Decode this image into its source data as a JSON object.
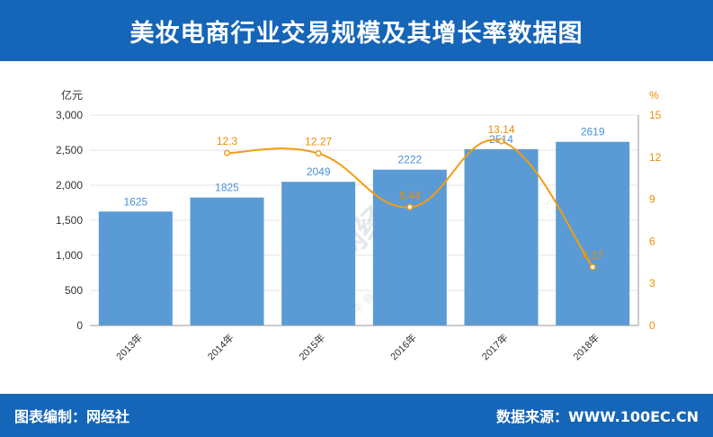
{
  "header": {
    "title": "美妆电商行业交易规模及其增长率数据图"
  },
  "footer": {
    "left": "图表编制：网经社",
    "right": "数据来源：WWW.100EC.CN"
  },
  "watermark": {
    "text": "WS网经社",
    "sub": "电 子 商 务 研 究 中 心"
  },
  "colors": {
    "bar": "#5b9bd5",
    "line": "#f39c12",
    "bar_label": "#4a90d9",
    "line_label": "#f08c00",
    "brand": "#1565b8"
  },
  "chart_data": {
    "type": "bar",
    "categories": [
      "2013年",
      "2014年",
      "2015年",
      "2016年",
      "2017年",
      "2018年"
    ],
    "series": [
      {
        "type": "bar",
        "values": [
          1625,
          1825,
          2049,
          2222,
          2514,
          2619
        ],
        "axis": "left"
      },
      {
        "type": "line",
        "values": [
          null,
          12.3,
          12.27,
          8.44,
          13.14,
          4.17
        ],
        "axis": "right"
      }
    ],
    "bar_labels": [
      "1625",
      "1825",
      "2049",
      "2222",
      "2514",
      "2619"
    ],
    "line_labels": [
      "",
      "12.3",
      "12.27",
      "8.44",
      "13.14",
      "4.17"
    ],
    "ylabel_left": "亿元",
    "ylabel_right": "%",
    "ylim_left": [
      0,
      3000
    ],
    "ylim_right": [
      0,
      15
    ],
    "yticks_left": [
      "0",
      "500",
      "1,000",
      "1,500",
      "2,000",
      "2,500",
      "3,000"
    ],
    "yticks_right": [
      "0",
      "3",
      "6",
      "9",
      "12",
      "15"
    ],
    "grid": true
  }
}
